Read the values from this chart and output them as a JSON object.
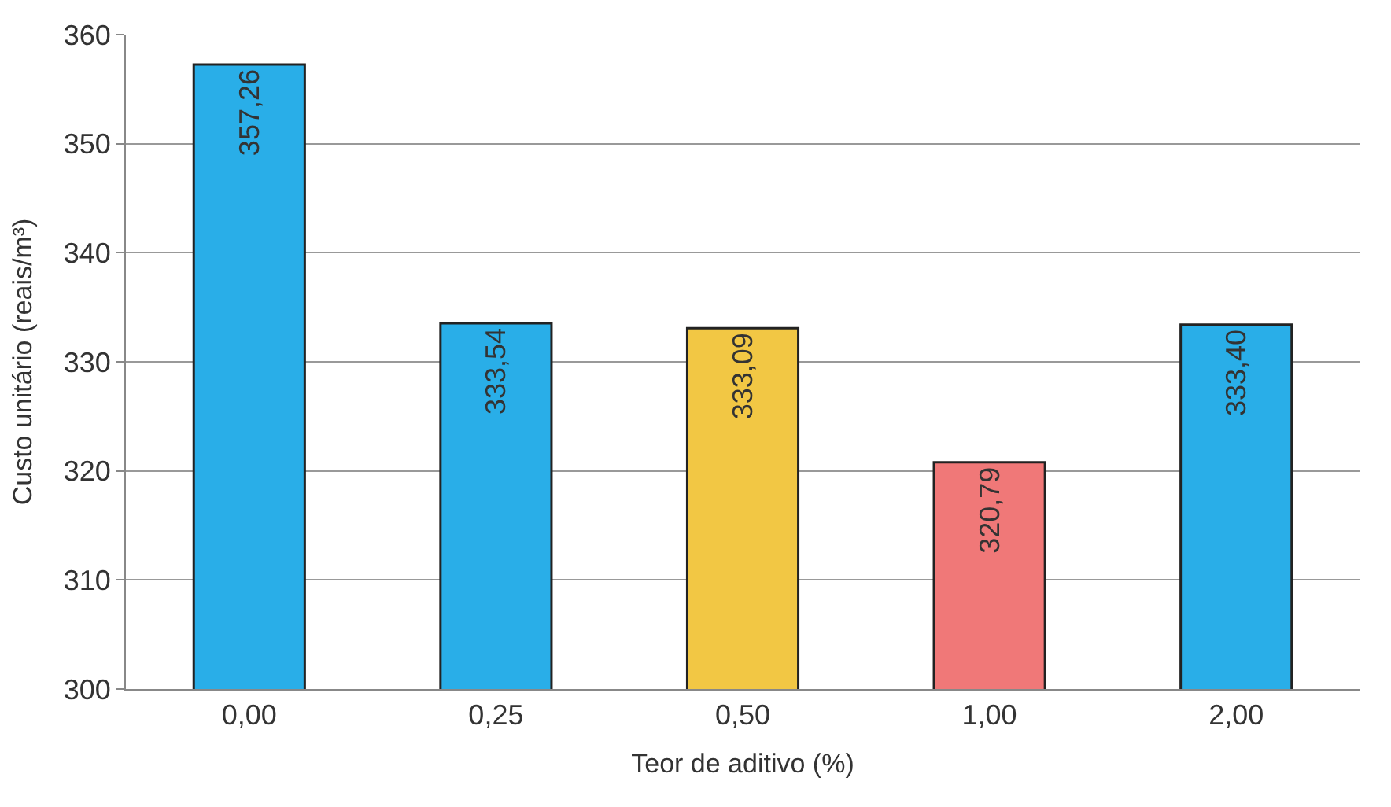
{
  "chart_data": {
    "type": "bar",
    "xlabel": "Teor de aditivo (%)",
    "ylabel": "Custo unitário (reais/m³)",
    "categories": [
      "0,00",
      "0,25",
      "0,50",
      "1,00",
      "2,00"
    ],
    "values": [
      357.26,
      333.54,
      333.09,
      320.79,
      333.4
    ],
    "value_labels": [
      "357,26",
      "333,54",
      "333,09",
      "320,79",
      "333,40"
    ],
    "colors": [
      "#29aee8",
      "#29aee8",
      "#f2c744",
      "#f07878",
      "#29aee8"
    ],
    "ylim": [
      300,
      360
    ],
    "yticks": [
      300,
      310,
      320,
      330,
      340,
      350,
      360
    ],
    "grid": "y"
  }
}
